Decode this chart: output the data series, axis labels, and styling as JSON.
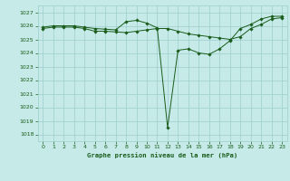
{
  "title": "Graphe pression niveau de la mer (hPa)",
  "bg_color": "#c5eae8",
  "grid_color": "#9ecece",
  "line_color": "#1a5c1a",
  "xlim": [
    -0.5,
    23.5
  ],
  "ylim": [
    1017.5,
    1027.5
  ],
  "yticks": [
    1018,
    1019,
    1020,
    1021,
    1022,
    1023,
    1024,
    1025,
    1026,
    1027
  ],
  "xticks": [
    0,
    1,
    2,
    3,
    4,
    5,
    6,
    7,
    8,
    9,
    10,
    11,
    12,
    13,
    14,
    15,
    16,
    17,
    18,
    19,
    20,
    21,
    22,
    23
  ],
  "series": [
    [
      1025.8,
      1025.9,
      1025.9,
      1025.9,
      1025.8,
      1025.6,
      1025.6,
      1025.55,
      1025.5,
      1025.6,
      1025.7,
      1025.8,
      1025.8,
      1025.6,
      1025.4,
      1025.3,
      1025.2,
      1025.1,
      1025.0,
      1025.2,
      1025.8,
      1026.1,
      1026.5,
      1026.6
    ],
    [
      1025.9,
      1026.0,
      1026.0,
      1026.0,
      1025.9,
      1025.8,
      1025.75,
      1025.7,
      1026.3,
      1026.4,
      1026.2,
      1025.85,
      1018.5,
      1024.2,
      1024.3,
      1024.0,
      1023.9,
      1024.3,
      1024.9,
      1025.8,
      1026.1,
      1026.5,
      1026.7,
      1026.7
    ]
  ]
}
